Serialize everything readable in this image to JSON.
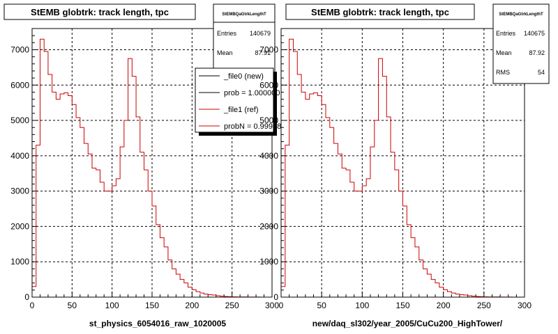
{
  "chart_data": [
    {
      "type": "histogram",
      "title": "StEMB globtrk: track length, tpc",
      "xlabel": "st_physics_6054016_raw_1020005",
      "ylabel": "",
      "xlim": [
        0,
        300
      ],
      "ylim": [
        0,
        7600
      ],
      "xticks": [
        "0",
        "50",
        "100",
        "150",
        "200",
        "250",
        "300"
      ],
      "yticks": [
        "0",
        "1000",
        "2000",
        "3000",
        "4000",
        "5000",
        "6000",
        "7000"
      ],
      "grid": true,
      "bin_width": 5,
      "stats": {
        "name": "StEMBQaGtrkLengthT",
        "rows": [
          {
            "label": "Entries",
            "value": "140679"
          },
          {
            "label": "Mean",
            "value": "87.91"
          }
        ]
      },
      "legend": {
        "placement": "top-right",
        "entries": [
          {
            "label": "_file0 (new)",
            "color": "#000000"
          },
          {
            "label": "prob = 1.000000",
            "color": "#000000"
          },
          {
            "label": "_file1 (ref)",
            "color": "#cc0000"
          },
          {
            "label": "probN = 0.999986",
            "color": "#cc0000"
          }
        ]
      },
      "series": [
        {
          "color": "#cc0000",
          "values": [
            300,
            4300,
            7300,
            6950,
            6300,
            5800,
            5600,
            5750,
            5780,
            5700,
            5450,
            5080,
            4800,
            4350,
            4050,
            3650,
            3600,
            3250,
            3000,
            3000,
            3150,
            3350,
            4250,
            5000,
            6750,
            6250,
            5100,
            4100,
            3600,
            3000,
            2580,
            2050,
            1680,
            1420,
            1050,
            800,
            650,
            500,
            400,
            280,
            210,
            155,
            115,
            85,
            70,
            58,
            40,
            28,
            18,
            12,
            8,
            6,
            5,
            4,
            3,
            2,
            2,
            1,
            1,
            0
          ]
        }
      ]
    },
    {
      "type": "histogram",
      "title": "StEMB globtrk: track length, tpc",
      "xlabel": "new/daq_sl302/year_2005/CuCu200_HighTower/",
      "ylabel": "",
      "xlim": [
        0,
        300
      ],
      "ylim": [
        0,
        7600
      ],
      "xticks": [
        "0",
        "50",
        "100",
        "150",
        "200",
        "250",
        "300"
      ],
      "yticks": [
        "0",
        "1000",
        "2000",
        "3000",
        "4000",
        "5000",
        "6000",
        "7000"
      ],
      "grid": true,
      "bin_width": 5,
      "stats": {
        "name": "StEMBQaGtrkLengthT",
        "rows": [
          {
            "label": "Entries",
            "value": "140675"
          },
          {
            "label": "Mean",
            "value": "87.92"
          },
          {
            "label": "RMS",
            "value": "54"
          }
        ]
      },
      "series": [
        {
          "color": "#cc0000",
          "values": [
            300,
            4300,
            7300,
            6950,
            6300,
            5800,
            5600,
            5750,
            5780,
            5700,
            5450,
            5080,
            4800,
            4350,
            4050,
            3650,
            3600,
            3250,
            3000,
            3000,
            3150,
            3350,
            4250,
            5000,
            6750,
            6250,
            5100,
            4100,
            3600,
            3000,
            2580,
            2050,
            1680,
            1420,
            1050,
            800,
            650,
            500,
            400,
            280,
            210,
            155,
            115,
            85,
            70,
            58,
            40,
            28,
            18,
            12,
            8,
            6,
            5,
            4,
            3,
            2,
            2,
            1,
            1,
            0
          ]
        }
      ]
    }
  ]
}
